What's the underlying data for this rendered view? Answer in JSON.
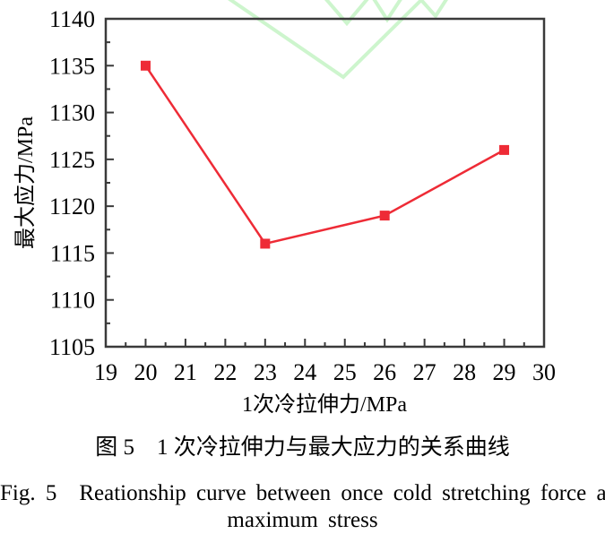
{
  "chart_data": {
    "type": "line",
    "title": "",
    "x": [
      20,
      23,
      26,
      29
    ],
    "y": [
      1135,
      1116,
      1119,
      1126
    ],
    "xlabel": "1次冷拉伸力/MPa",
    "ylabel": "最大应力/MPa",
    "xlim": [
      19,
      30
    ],
    "ylim": [
      1105,
      1140
    ],
    "xticks": [
      19,
      20,
      21,
      22,
      23,
      24,
      25,
      26,
      27,
      28,
      29,
      30
    ],
    "yticks": [
      1105,
      1110,
      1115,
      1120,
      1125,
      1130,
      1135,
      1140
    ],
    "x_minor_step": 0.5,
    "y_minor_step": 2.5,
    "grid": false,
    "legend": "none",
    "marker": "square",
    "line_color": "#ee2b36",
    "axis_color": "#3a3a3a"
  },
  "captions": {
    "zh": "图 5　1 次冷拉伸力与最大应力的关系曲线",
    "en_line1": "Fig. 5　Reationship curve between once cold stretching force and",
    "en_line2": "maximum stress"
  },
  "watermark": {
    "shape": "zigzag-chevrons",
    "color": "#cdf5cd"
  }
}
